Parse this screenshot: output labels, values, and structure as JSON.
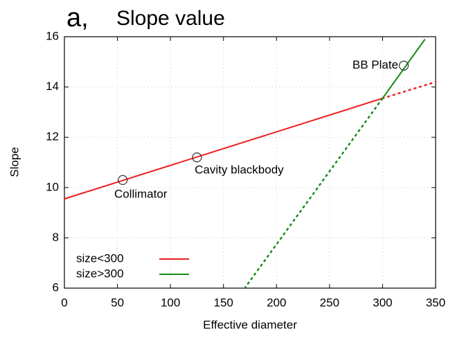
{
  "chart_data": {
    "type": "line",
    "panel_label": "a,",
    "title": "Slope value",
    "x_label": "Effective diameter",
    "y_label": "Slope",
    "xlim": [
      0,
      350
    ],
    "xticks": [
      0,
      50,
      100,
      150,
      200,
      250,
      300,
      350
    ],
    "ylim": [
      6,
      16
    ],
    "yticks": [
      6,
      8,
      10,
      12,
      14,
      16
    ],
    "grid": true,
    "legend": "lower left",
    "series": [
      {
        "name": "size<300",
        "color": "#ee1c1c",
        "x": [
          0,
          300
        ],
        "values": [
          9.55,
          13.55
        ],
        "extension": {
          "x": [
            300,
            350
          ],
          "values": [
            13.55,
            14.2
          ]
        }
      },
      {
        "name": "size>300",
        "color": "#138a13",
        "x": [
          300,
          340
        ],
        "values": [
          13.55,
          15.9
        ],
        "extension": {
          "x": [
            170,
            300
          ],
          "values": [
            6,
            13.55
          ]
        }
      }
    ],
    "points": [
      {
        "label": "Collimator",
        "x": 55,
        "y": 10.3
      },
      {
        "label": "Cavity blackbody",
        "x": 125,
        "y": 11.2
      },
      {
        "label": "BB Plate",
        "x": 320,
        "y": 14.85
      }
    ]
  }
}
